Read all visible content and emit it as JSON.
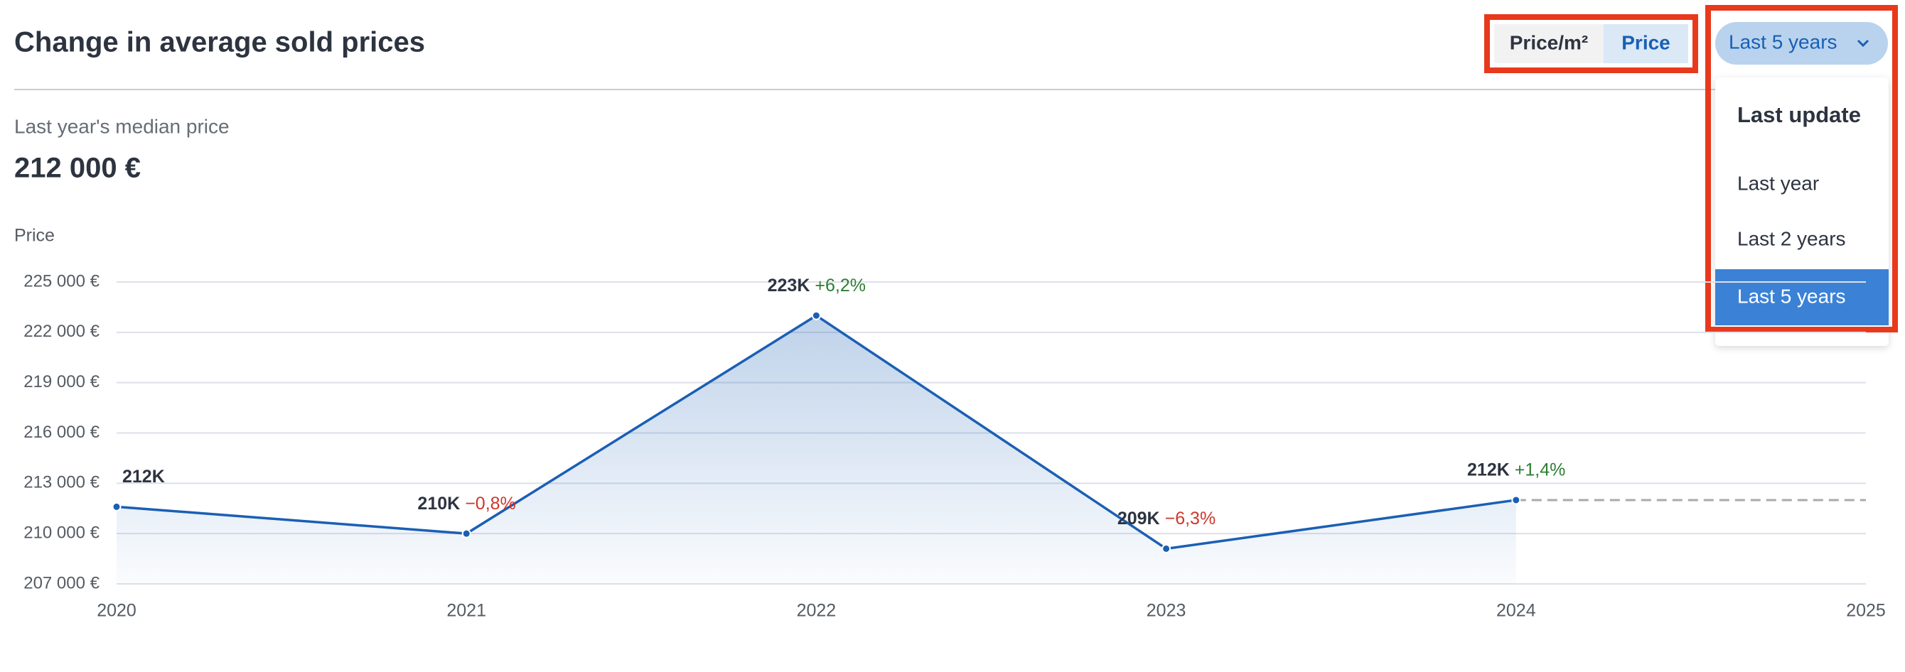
{
  "header": {
    "title": "Change in average sold prices"
  },
  "toggle": {
    "options": [
      "Price/m²",
      "Price"
    ],
    "selected": 1
  },
  "period_dropdown": {
    "button": "Last 5 years",
    "menu_heading": "Last update",
    "options": [
      "Last year",
      "Last 2 years",
      "Last 5 years"
    ],
    "selected": 2
  },
  "summary": {
    "label": "Last year's median price",
    "value": "212 000 €"
  },
  "chart_data": {
    "type": "line",
    "y_label": "Price",
    "x": [
      2020,
      2021,
      2022,
      2023,
      2024
    ],
    "values": [
      211600,
      210000,
      223000,
      209100,
      212000
    ],
    "value_labels": [
      "212K",
      "210K",
      "223K",
      "209K",
      "212K"
    ],
    "change_labels": [
      null,
      "−0,8%",
      "+6,2%",
      "−6,3%",
      "+1,4%"
    ],
    "color": "#1a5fb4",
    "positive_color": "#2e7d32",
    "negative_color": "#d0362b",
    "xlim": [
      2020,
      2025
    ],
    "xticks": [
      2020,
      2021,
      2022,
      2023,
      2024,
      2025
    ],
    "ylim": [
      207000,
      225000
    ],
    "yticks": [
      {
        "value": 207000,
        "label": "207 000 €"
      },
      {
        "value": 210000,
        "label": "210 000 €"
      },
      {
        "value": 213000,
        "label": "213 000 €"
      },
      {
        "value": 216000,
        "label": "216 000 €"
      },
      {
        "value": 219000,
        "label": "219 000 €"
      },
      {
        "value": 222000,
        "label": "222 000 €"
      },
      {
        "value": 225000,
        "label": "225 000 €"
      }
    ],
    "grid": true,
    "area": true,
    "projection": true
  }
}
